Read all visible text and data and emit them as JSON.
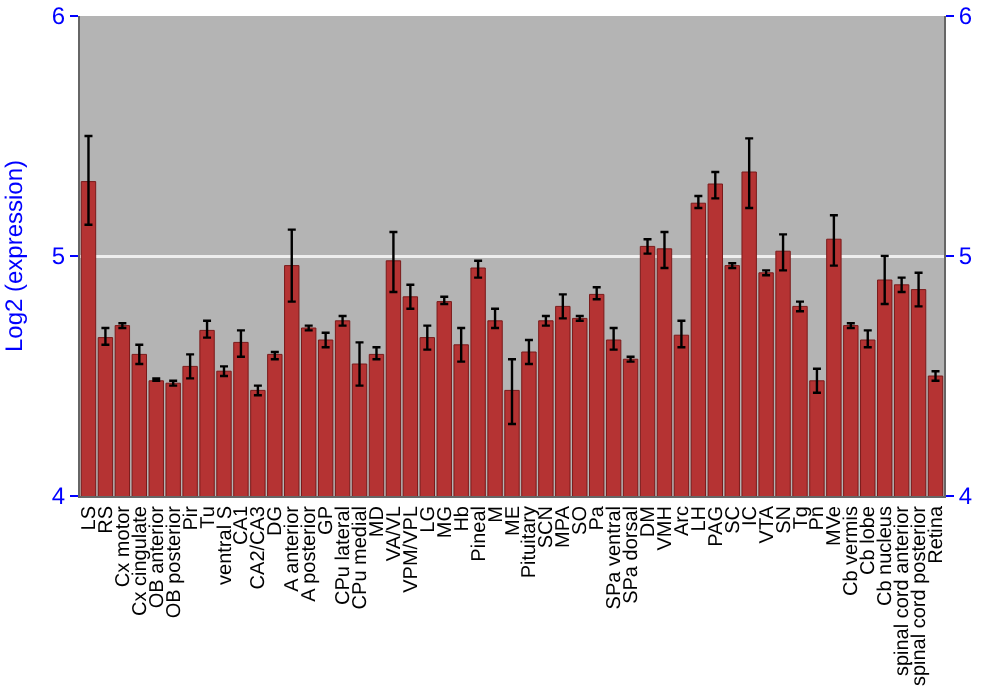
{
  "chart_data": {
    "type": "bar",
    "ylabel": "Log2 (expression)",
    "categories": [
      "LS",
      "RS",
      "Cx motor",
      "Cx cingulate",
      "OB anterior",
      "OB posterior",
      "Pir",
      "Tu",
      "ventral S",
      "CA1",
      "CA2/CA3",
      "DG",
      "A anterior",
      "A posterior",
      "GP",
      "CPu lateral",
      "CPu medial",
      "MD",
      "VA/VL",
      "VPM/VPL",
      "LG",
      "MG",
      "Hb",
      "Pineal",
      "M",
      "ME",
      "Pituitary",
      "SCN",
      "MPA",
      "SO",
      "Pa",
      "SPa ventral",
      "SPa dorsal",
      "DM",
      "VMH",
      "Arc",
      "LH",
      "PAG",
      "SC",
      "IC",
      "VTA",
      "SN",
      "Tg",
      "Pn",
      "MVe",
      "Cb vermis",
      "Cb lobe",
      "Cb nucleus",
      "spinal cord anterior",
      "spinal cord posterior",
      "Retina"
    ],
    "values": [
      5.31,
      4.66,
      4.71,
      4.59,
      4.48,
      4.47,
      4.54,
      4.69,
      4.52,
      4.64,
      4.44,
      4.59,
      4.96,
      4.7,
      4.65,
      4.73,
      4.55,
      4.59,
      4.98,
      4.83,
      4.66,
      4.81,
      4.63,
      4.95,
      4.73,
      4.44,
      4.6,
      4.73,
      4.79,
      4.74,
      4.84,
      4.65,
      4.57,
      5.04,
      5.03,
      4.67,
      5.22,
      5.3,
      4.96,
      5.35,
      4.93,
      5.02,
      4.79,
      4.48,
      5.07,
      4.71,
      4.65,
      4.9,
      4.88,
      4.86,
      4.5
    ],
    "errors": [
      [
        5.13,
        5.5
      ],
      [
        4.63,
        4.7
      ],
      [
        4.7,
        4.72
      ],
      [
        4.55,
        4.63
      ],
      [
        4.48,
        4.49
      ],
      [
        4.46,
        4.48
      ],
      [
        4.49,
        4.59
      ],
      [
        4.66,
        4.73
      ],
      [
        4.5,
        4.54
      ],
      [
        4.58,
        4.69
      ],
      [
        4.42,
        4.46
      ],
      [
        4.57,
        4.6
      ],
      [
        4.81,
        5.11
      ],
      [
        4.69,
        4.71
      ],
      [
        4.62,
        4.68
      ],
      [
        4.71,
        4.75
      ],
      [
        4.46,
        4.64
      ],
      [
        4.57,
        4.62
      ],
      [
        4.85,
        5.1
      ],
      [
        4.78,
        4.88
      ],
      [
        4.61,
        4.71
      ],
      [
        4.8,
        4.83
      ],
      [
        4.56,
        4.7
      ],
      [
        4.91,
        4.98
      ],
      [
        4.7,
        4.78
      ],
      [
        4.3,
        4.57
      ],
      [
        4.55,
        4.65
      ],
      [
        4.71,
        4.75
      ],
      [
        4.74,
        4.84
      ],
      [
        4.73,
        4.75
      ],
      [
        4.82,
        4.87
      ],
      [
        4.61,
        4.7
      ],
      [
        4.56,
        4.58
      ],
      [
        5.01,
        5.07
      ],
      [
        4.95,
        5.1
      ],
      [
        4.62,
        4.73
      ],
      [
        5.2,
        5.25
      ],
      [
        5.24,
        5.35
      ],
      [
        4.95,
        4.97
      ],
      [
        5.2,
        5.49
      ],
      [
        4.92,
        4.94
      ],
      [
        4.94,
        5.09
      ],
      [
        4.77,
        4.81
      ],
      [
        4.43,
        4.53
      ],
      [
        4.96,
        5.17
      ],
      [
        4.7,
        4.72
      ],
      [
        4.62,
        4.69
      ],
      [
        4.8,
        5.0
      ],
      [
        4.85,
        4.91
      ],
      [
        4.79,
        4.93
      ],
      [
        4.48,
        4.52
      ]
    ],
    "color": "#b53333",
    "ylim": [
      4,
      6
    ],
    "yticks": [
      4,
      5,
      6
    ],
    "y2lim": [
      4,
      6
    ],
    "y2ticks": [
      4,
      5,
      6
    ],
    "grid": "y"
  }
}
